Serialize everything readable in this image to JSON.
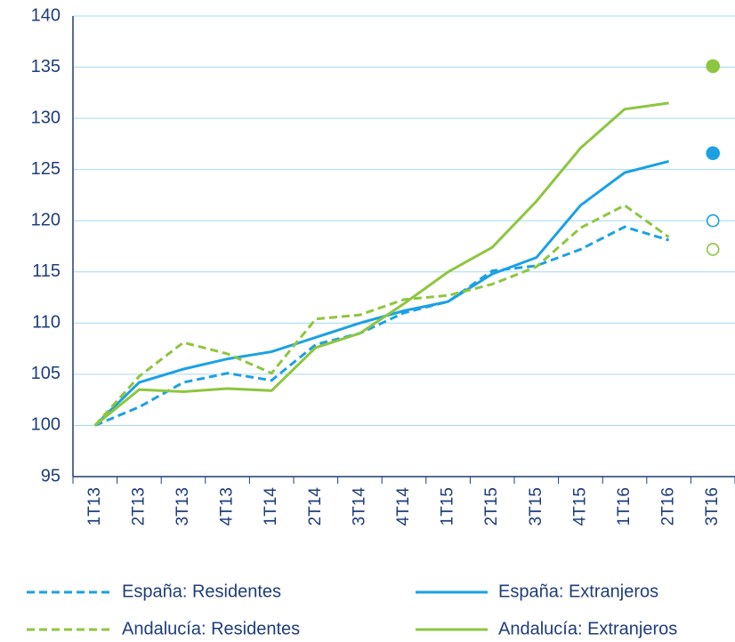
{
  "chart_data": {
    "type": "line",
    "categories": [
      "1T13",
      "2T13",
      "3T13",
      "4T13",
      "1T14",
      "2T14",
      "3T14",
      "4T14",
      "1T15",
      "2T15",
      "3T15",
      "4T15",
      "1T16",
      "2T16",
      "3T16"
    ],
    "series": [
      {
        "name": "España: Residentes",
        "color": "#1ba1e2",
        "dash": true,
        "values": [
          100,
          101.8,
          104.2,
          105.1,
          104.4,
          107.9,
          109,
          111,
          112.1,
          115.1,
          115.6,
          117.2,
          119.4,
          118.1,
          null
        ],
        "estimate": [
          null,
          null,
          null,
          null,
          null,
          null,
          null,
          null,
          null,
          null,
          null,
          null,
          null,
          null,
          120
        ]
      },
      {
        "name": "España: Extranjeros",
        "color": "#1ba1e2",
        "dash": false,
        "values": [
          100,
          104.2,
          105.5,
          106.5,
          107.2,
          108.6,
          110,
          111.2,
          112.1,
          114.8,
          116.4,
          121.5,
          124.7,
          125.8,
          null
        ],
        "estimate": [
          null,
          null,
          null,
          null,
          null,
          null,
          null,
          null,
          null,
          null,
          null,
          null,
          null,
          null,
          126.6
        ]
      },
      {
        "name": "Andalucía: Residentes",
        "color": "#8dc63f",
        "dash": true,
        "values": [
          100,
          104.8,
          108.1,
          107,
          105.1,
          110.4,
          110.8,
          112.3,
          112.7,
          113.8,
          115.5,
          119.3,
          121.5,
          118.4,
          null
        ],
        "estimate": [
          null,
          null,
          null,
          null,
          null,
          null,
          null,
          null,
          null,
          null,
          null,
          null,
          null,
          null,
          117.2
        ]
      },
      {
        "name": "Andalucía: Extranjeros",
        "color": "#8dc63f",
        "dash": false,
        "values": [
          100,
          103.5,
          103.3,
          103.6,
          103.4,
          107.6,
          109,
          111.9,
          115,
          117.4,
          121.9,
          127.1,
          130.9,
          131.5,
          null
        ],
        "estimate": [
          null,
          null,
          null,
          null,
          null,
          null,
          null,
          null,
          null,
          null,
          null,
          null,
          null,
          null,
          135.1
        ]
      }
    ],
    "ylim": [
      95,
      140
    ],
    "yticks": [
      95,
      100,
      105,
      110,
      115,
      120,
      125,
      130,
      135,
      140
    ],
    "grid": true
  }
}
